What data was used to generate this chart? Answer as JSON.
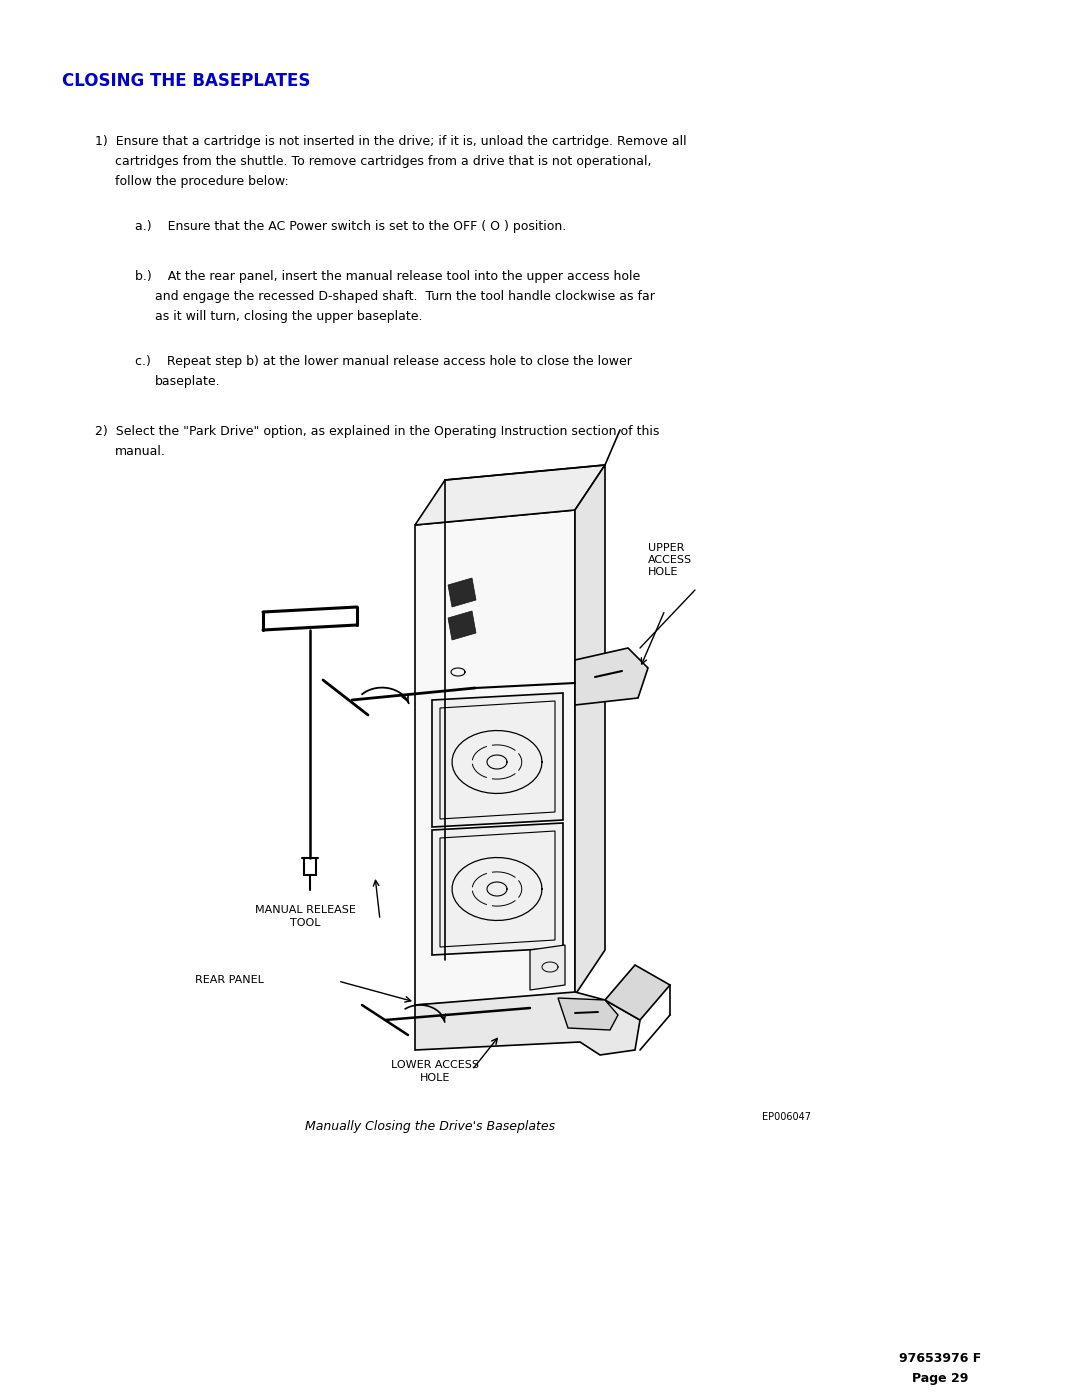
{
  "title": "CLOSING THE BASEPLATES",
  "title_color": "#0000CC",
  "background_color": "#FFFFFF",
  "body_color": "#000000",
  "page_number_text": "97653976 F\nPage 29",
  "ep_code": "EP006047",
  "caption_text": "Manually Closing the Drive's Baseplates",
  "para1_text": "1)  Ensure that a cartridge is not inserted in the drive; if it is, unload the cartridge. Remove all\n     cartridges from the shuttle. To remove cartridges from a drive that is not operational,\n     follow the procedure below:",
  "para_a_text": "a.)    Ensure that the AC Power switch is set to the OFF ( O ) position.",
  "para_b_text": "b.)    At the rear panel, insert the manual release tool into the upper access hole\n         and engage the recessed D-shaped shaft.  Turn the tool handle clockwise as far\n         as it will turn, closing the upper baseplate.",
  "para_c_text": "c.)    Repeat step b) at the lower manual release access hole to close the lower\n         baseplate.",
  "para2_text": "2)  Select the \"Park Drive\" option, as explained in the Operating Instruction section of this\n     manual.",
  "label_upper": "UPPER\nACCESS\nHOLE",
  "label_manual": "MANUAL RELEASE\nTOOL",
  "label_rear": "REAR PANEL",
  "label_lower": "LOWER ACCESS\nHOLE",
  "title_fontsize": 12,
  "body_fontsize": 9,
  "label_fontsize": 8
}
